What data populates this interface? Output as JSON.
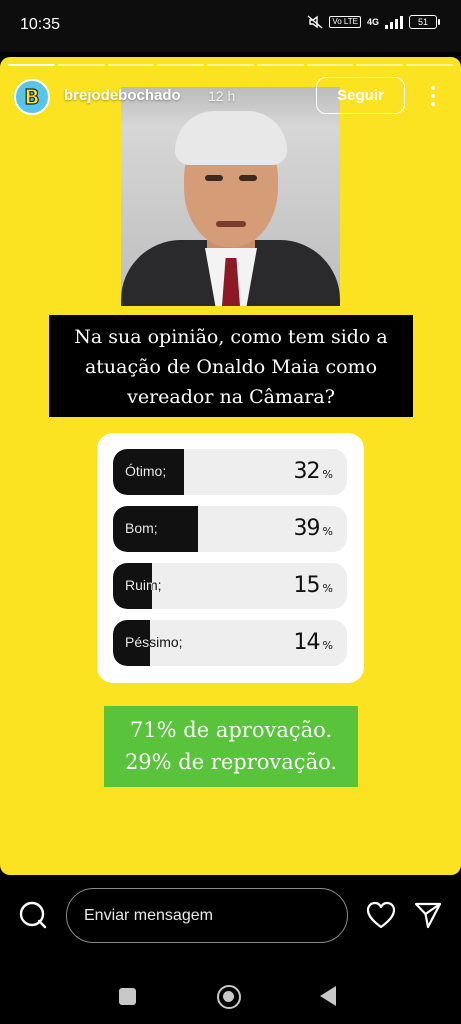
{
  "status_bar": {
    "time": "10:35",
    "volte": "Vo LTE",
    "network": "4G",
    "battery": "51"
  },
  "story": {
    "background_color": "#fbe322",
    "progress_segments": 9,
    "progress_done": 1,
    "account": {
      "avatar_letter": "B",
      "username": "brejodebochado",
      "time_ago": "12 h"
    },
    "follow_label": "Seguir",
    "question_lines": [
      "Na sua opinião, como tem sido a",
      "atuação de Onaldo Maia como",
      "vereador na Câmara?"
    ],
    "poll": {
      "options": [
        {
          "label": "Ótimo;",
          "percent": 32
        },
        {
          "label": "Bom;",
          "percent": 39
        },
        {
          "label": "Ruim;",
          "percent": 15
        },
        {
          "label": "Péssimo;",
          "percent": 14
        }
      ],
      "percent_sign": "%"
    },
    "result_lines": [
      "71% de aprovação.",
      "29% de reprovação."
    ],
    "result_color": "#58c33b"
  },
  "reply_bar": {
    "placeholder": "Enviar mensagem",
    "icons": [
      "camera-icon",
      "heart-icon",
      "send-icon"
    ]
  },
  "nav_bar": {
    "icons": [
      "recents-icon",
      "home-icon",
      "back-icon"
    ]
  }
}
